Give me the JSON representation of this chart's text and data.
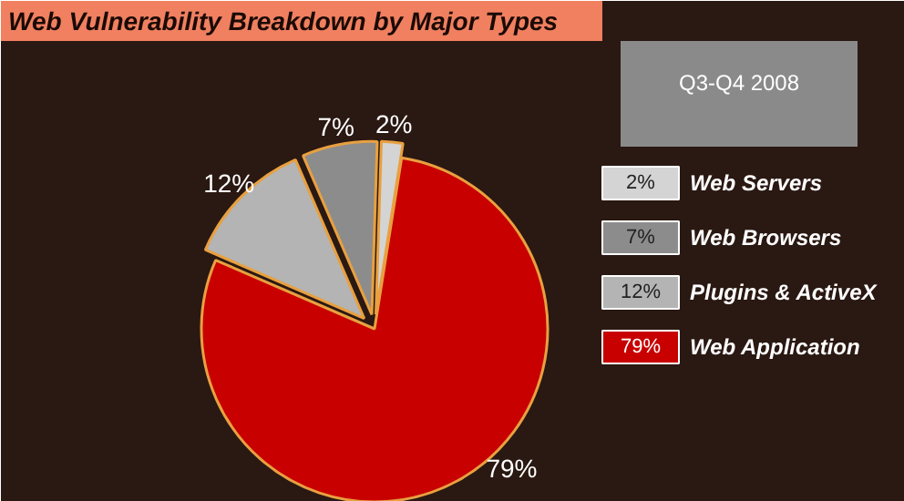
{
  "chart_data": {
    "type": "pie",
    "title": "Web Vulnerability Breakdown by Major Types",
    "subtitle": "Q3-Q4 2008",
    "categories": [
      "Web Servers",
      "Web Browsers",
      "Plugins & ActiveX",
      "Web Application"
    ],
    "values": [
      2,
      7,
      12,
      79
    ],
    "colors": [
      "#d4d4d4",
      "#8c8c8c",
      "#b4b4b4",
      "#c80000"
    ],
    "value_labels": [
      "2%",
      "7%",
      "12%",
      "79%"
    ],
    "legend": "right"
  }
}
